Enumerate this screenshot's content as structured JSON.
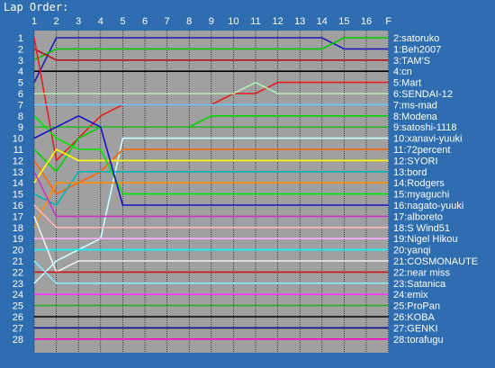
{
  "chart_data": {
    "type": "line",
    "title": "Lap Order:",
    "x": [
      "1",
      "2",
      "3",
      "4",
      "5",
      "6",
      "7",
      "8",
      "9",
      "10",
      "11",
      "12",
      "13",
      "14",
      "15",
      "16",
      "F"
    ],
    "y_ticks": [
      "1",
      "2",
      "3",
      "4",
      "5",
      "6",
      "7",
      "8",
      "9",
      "10",
      "11",
      "12",
      "13",
      "14",
      "15",
      "16",
      "17",
      "18",
      "19",
      "20",
      "21",
      "22",
      "23",
      "24",
      "25",
      "26",
      "27",
      "28"
    ],
    "ylim": [
      1,
      28
    ],
    "y_inverted": true,
    "grid": true,
    "plot_background": "#a0a0a0",
    "page_background": "#2e6db0",
    "series": [
      {
        "name": "1:Beh2007",
        "color": "#1c1cb4",
        "values": [
          5,
          1,
          1,
          1,
          1,
          1,
          1,
          1,
          1,
          1,
          1,
          1,
          1,
          1,
          2,
          2,
          2
        ]
      },
      {
        "name": "2:satoruko",
        "color": "#00c800",
        "values": [
          3,
          2,
          2,
          2,
          2,
          2,
          2,
          2,
          2,
          2,
          2,
          2,
          2,
          2,
          1,
          1,
          1
        ]
      },
      {
        "name": "3:TAM'S",
        "color": "#b41414",
        "values": [
          2,
          3,
          3,
          3,
          3,
          3,
          3,
          3,
          3,
          3,
          3,
          3,
          3,
          3,
          3,
          3,
          3
        ]
      },
      {
        "name": "4:cn",
        "color": "#000000",
        "values": [
          4,
          4,
          4,
          4,
          4,
          4,
          4,
          4,
          4,
          4,
          4,
          4,
          4,
          4,
          4,
          4,
          4
        ]
      },
      {
        "name": "5:Mart",
        "color": "#e61e1e",
        "values": [
          1,
          12,
          10,
          8,
          7,
          7,
          7,
          7,
          7,
          6,
          6,
          5,
          5,
          5,
          5,
          5,
          5
        ]
      },
      {
        "name": "6:SENDAI-12",
        "color": "#b4f0b4",
        "values": [
          6,
          6,
          6,
          6,
          6,
          6,
          6,
          6,
          6,
          6,
          5,
          6,
          6,
          6,
          6,
          6,
          6
        ]
      },
      {
        "name": "7:ms-mad",
        "color": "#64c8ff",
        "values": [
          7,
          7,
          7,
          7,
          7,
          7,
          7,
          7,
          7,
          7,
          7,
          7,
          7,
          7,
          7,
          7,
          7
        ]
      },
      {
        "name": "8:Modena",
        "color": "#00d200",
        "values": [
          11,
          13,
          10,
          9,
          9,
          9,
          9,
          9,
          8,
          8,
          8,
          8,
          8,
          8,
          8,
          8,
          8
        ]
      },
      {
        "name": "9:satoshi-1118",
        "color": "#32b432",
        "values": [
          9,
          9,
          9,
          9,
          9,
          9,
          9,
          9,
          9,
          9,
          9,
          9,
          9,
          9,
          9,
          9,
          9
        ]
      },
      {
        "name": "10:xanavi-yuuki",
        "color": "#c8ffff",
        "values": [
          23,
          21,
          20,
          19,
          10,
          10,
          10,
          10,
          10,
          10,
          10,
          10,
          10,
          10,
          10,
          10,
          10
        ]
      },
      {
        "name": "11:72percent",
        "color": "#ff6400",
        "values": [
          12,
          15,
          14,
          13,
          11,
          11,
          11,
          11,
          11,
          11,
          11,
          11,
          11,
          11,
          11,
          11,
          11
        ]
      },
      {
        "name": "12:SYORI",
        "color": "#ffff00",
        "values": [
          14,
          11,
          12,
          12,
          12,
          12,
          12,
          12,
          12,
          12,
          12,
          12,
          12,
          12,
          12,
          12,
          12
        ]
      },
      {
        "name": "13:bord",
        "color": "#00b4b4",
        "values": [
          15,
          16,
          13,
          13,
          13,
          13,
          13,
          13,
          13,
          13,
          13,
          13,
          13,
          13,
          13,
          13,
          13
        ]
      },
      {
        "name": "14:Rodgers",
        "color": "#ff8c00",
        "values": [
          18,
          14,
          14,
          14,
          14,
          14,
          14,
          14,
          14,
          14,
          14,
          14,
          14,
          14,
          14,
          14,
          14
        ]
      },
      {
        "name": "15:myaguchi",
        "color": "#00e600",
        "values": [
          8,
          10,
          11,
          11,
          15,
          15,
          15,
          15,
          15,
          15,
          15,
          15,
          15,
          15,
          15,
          15,
          15
        ]
      },
      {
        "name": "16:nagato-yuuki",
        "color": "#1414c8",
        "values": [
          10,
          9,
          8,
          9,
          16,
          16,
          16,
          16,
          16,
          16,
          16,
          16,
          16,
          16,
          16,
          16,
          16
        ]
      },
      {
        "name": "17:alboreto",
        "color": "#c832c8",
        "values": [
          13,
          17,
          17,
          17,
          17,
          17,
          17,
          17,
          17,
          17,
          17,
          17,
          17,
          17,
          17,
          17,
          17
        ]
      },
      {
        "name": "18:S Wind51",
        "color": "#ffb4b4",
        "values": [
          16,
          18,
          18,
          18,
          18,
          18,
          18,
          18,
          18,
          18,
          18,
          18,
          18,
          18,
          18,
          18,
          18
        ]
      },
      {
        "name": "19:Nigel Hikou",
        "color": "#ffaaff",
        "values": [
          19,
          19,
          19,
          19,
          19,
          19,
          19,
          19,
          19,
          19,
          19,
          19,
          19,
          19,
          19,
          19,
          19
        ]
      },
      {
        "name": "20:yanqi",
        "color": "#00ffff",
        "values": [
          20,
          20,
          20,
          20,
          20,
          20,
          20,
          20,
          20,
          20,
          20,
          20,
          20,
          20,
          20,
          20,
          20
        ]
      },
      {
        "name": "21:COSMONAUTE",
        "color": "#f0f0f0",
        "values": [
          17,
          22,
          21,
          21,
          21,
          21,
          21,
          21,
          21,
          21,
          21,
          21,
          21,
          21,
          21,
          21,
          21
        ]
      },
      {
        "name": "22:near miss",
        "color": "#c81414",
        "values": [
          22,
          22,
          22,
          22,
          22,
          22,
          22,
          22,
          22,
          22,
          22,
          22,
          22,
          22,
          22,
          22,
          22
        ]
      },
      {
        "name": "23:Satanica",
        "color": "#8ce6ff",
        "values": [
          21,
          23,
          23,
          23,
          23,
          23,
          23,
          23,
          23,
          23,
          23,
          23,
          23,
          23,
          23,
          23,
          23
        ]
      },
      {
        "name": "24:emix",
        "color": "#ff32ff",
        "values": [
          24,
          24,
          24,
          24,
          24,
          24,
          24,
          24,
          24,
          24,
          24,
          24,
          24,
          24,
          24,
          24,
          24
        ]
      },
      {
        "name": "25:ProPan",
        "color": "#2daa2d",
        "values": [
          25,
          25,
          25,
          25,
          25,
          25,
          25,
          25,
          25,
          25,
          25,
          25,
          25,
          25,
          25,
          25,
          25
        ]
      },
      {
        "name": "26:KOBA",
        "color": "#000000",
        "values": [
          26,
          26,
          26,
          26,
          26,
          26,
          26,
          26,
          26,
          26,
          26,
          26,
          26,
          26,
          26,
          26,
          26
        ]
      },
      {
        "name": "27:GENKI",
        "color": "#0a0a96",
        "values": [
          27,
          27,
          27,
          27,
          27,
          27,
          27,
          27,
          27,
          27,
          27,
          27,
          27,
          27,
          27,
          27,
          27
        ]
      },
      {
        "name": "28:torafugu",
        "color": "#ff00c8",
        "values": [
          28,
          28,
          28,
          28,
          28,
          28,
          28,
          28,
          28,
          28,
          28,
          28,
          28,
          28,
          28,
          28,
          28
        ]
      }
    ]
  }
}
